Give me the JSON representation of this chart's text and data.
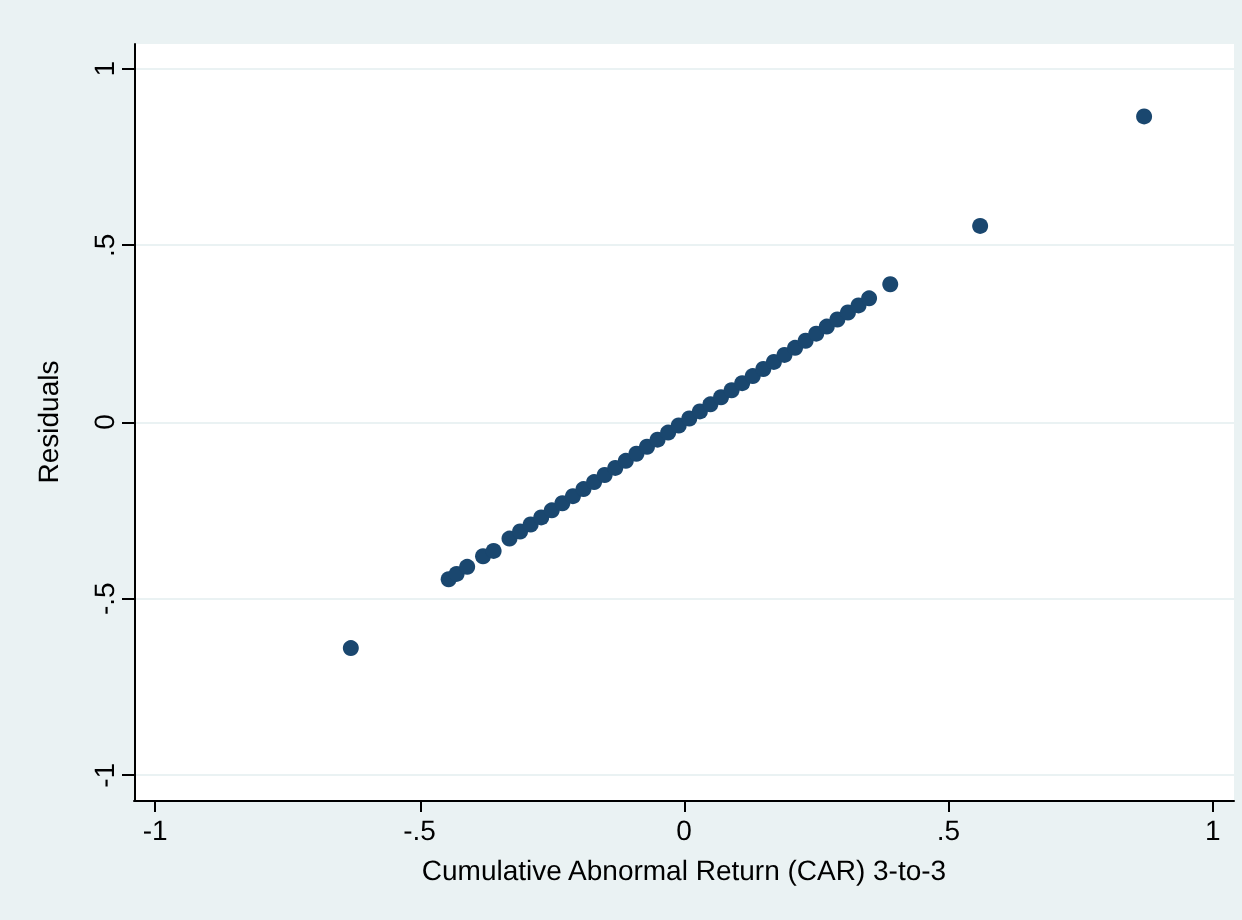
{
  "chart_data": {
    "type": "scatter",
    "xlabel": "Cumulative Abnormal Return (CAR) 3-to-3",
    "ylabel": "Residuals",
    "x": [
      -0.63,
      -0.445,
      -0.43,
      -0.41,
      -0.38,
      -0.36,
      -0.33,
      -0.31,
      -0.29,
      -0.27,
      -0.25,
      -0.23,
      -0.21,
      -0.19,
      -0.17,
      -0.15,
      -0.13,
      -0.11,
      -0.09,
      -0.07,
      -0.05,
      -0.03,
      -0.01,
      0.01,
      0.03,
      0.05,
      0.07,
      0.09,
      0.11,
      0.13,
      0.15,
      0.17,
      0.19,
      0.21,
      0.23,
      0.25,
      0.27,
      0.29,
      0.31,
      0.33,
      0.35,
      0.39,
      0.56,
      0.87
    ],
    "values": [
      -0.64,
      -0.445,
      -0.43,
      -0.41,
      -0.38,
      -0.365,
      -0.33,
      -0.31,
      -0.29,
      -0.27,
      -0.25,
      -0.23,
      -0.21,
      -0.19,
      -0.17,
      -0.15,
      -0.13,
      -0.11,
      -0.09,
      -0.07,
      -0.05,
      -0.03,
      -0.01,
      0.01,
      0.03,
      0.05,
      0.07,
      0.09,
      0.11,
      0.13,
      0.15,
      0.17,
      0.19,
      0.21,
      0.23,
      0.25,
      0.27,
      0.29,
      0.31,
      0.33,
      0.35,
      0.39,
      0.555,
      0.865
    ],
    "color": "#1a476f",
    "marker": "circle",
    "xlim": [
      -1.04,
      1.04
    ],
    "ylim": [
      -1.07,
      1.07
    ],
    "xticks": [
      -1,
      {
        "value": -0.5,
        "label": "-.5"
      },
      0,
      {
        "value": 0.5,
        "label": ".5"
      },
      1
    ],
    "yticks": [
      -1,
      {
        "value": -0.5,
        "label": "-.5"
      },
      0,
      {
        "value": 0.5,
        "label": ".5"
      },
      1
    ],
    "grid": "y"
  }
}
